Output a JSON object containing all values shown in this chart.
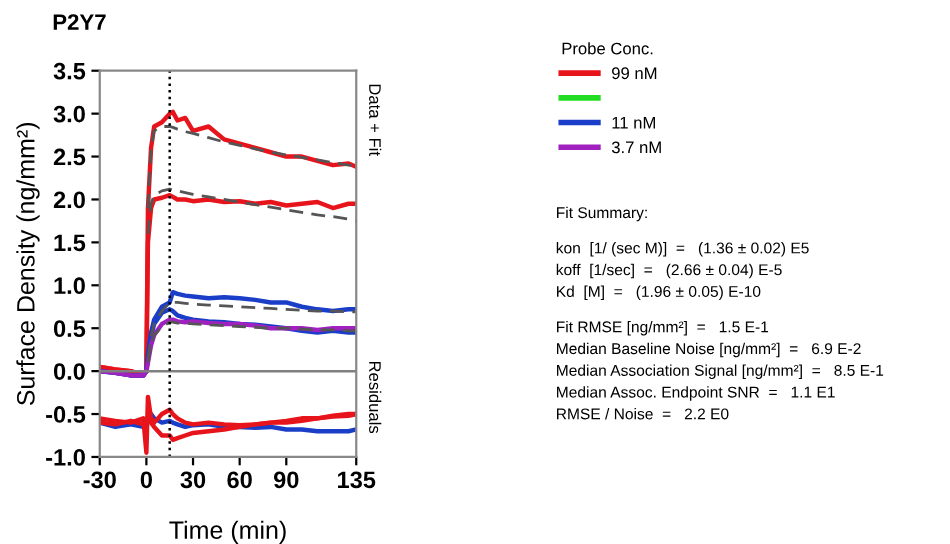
{
  "chart_data": {
    "type": "line",
    "title": "P2Y7",
    "xlabel": "Time (min)",
    "ylabel": "Surface Density (ng/mm²)",
    "legend_title": "Probe Conc.",
    "legend": "right",
    "grid": false,
    "xlim": [
      -30,
      135
    ],
    "xticks": [
      -30,
      0,
      30,
      60,
      90,
      135
    ],
    "ylim": [
      -1.0,
      3.5
    ],
    "yticks": [
      {
        "value": -1.0,
        "label": "-1.0"
      },
      {
        "value": -0.5,
        "label": "-0.5"
      },
      {
        "value": 0.0,
        "label": "0.0"
      },
      {
        "value": 0.5,
        "label": "0.5"
      },
      {
        "value": 1.0,
        "label": "1.0"
      },
      {
        "value": 1.5,
        "label": "1.5"
      },
      {
        "value": 2.0,
        "label": "2.0"
      },
      {
        "value": 2.5,
        "label": "2.5"
      },
      {
        "value": 3.0,
        "label": "3.0"
      },
      {
        "value": 3.5,
        "label": "3.5"
      }
    ],
    "ref_lines": [
      {
        "axis": "y",
        "value": 0,
        "color": "#808080",
        "line_style": "solid"
      },
      {
        "axis": "x",
        "value": 15,
        "color": "#000000",
        "line_style": "dotted"
      }
    ],
    "x": [
      -30,
      -20,
      -10,
      -2,
      0,
      1,
      3,
      5,
      10,
      15,
      17,
      20,
      25,
      30,
      40,
      50,
      60,
      70,
      80,
      90,
      100,
      110,
      120,
      130,
      135
    ],
    "series": [
      {
        "name": "99 nM",
        "color": "#e8141b",
        "values": [
          0.05,
          0.02,
          0.0,
          -0.05,
          0.0,
          1.9,
          2.6,
          2.85,
          2.9,
          3.0,
          3.02,
          2.92,
          2.95,
          2.8,
          2.85,
          2.7,
          2.65,
          2.6,
          2.55,
          2.5,
          2.5,
          2.45,
          2.4,
          2.42,
          2.38
        ]
      },
      {
        "color": "#e8141b",
        "values": [
          0.05,
          0.02,
          0.0,
          -0.05,
          0.0,
          1.5,
          1.9,
          2.0,
          2.02,
          2.05,
          2.03,
          2.0,
          2.0,
          1.98,
          2.0,
          1.97,
          1.98,
          1.95,
          1.97,
          1.93,
          1.95,
          1.97,
          1.9,
          1.95,
          1.95
        ]
      },
      {
        "color": "#22dd22",
        "values": [
          null,
          null,
          null,
          null,
          null,
          null,
          null,
          null,
          null,
          null,
          null,
          null,
          null,
          null,
          null,
          null,
          null,
          null,
          null,
          null,
          null,
          null,
          null,
          null,
          null
        ]
      },
      {
        "name": "11 nM",
        "color": "#1a3ec8",
        "values": [
          0.0,
          -0.02,
          -0.05,
          -0.05,
          0.0,
          0.2,
          0.45,
          0.6,
          0.75,
          0.8,
          0.92,
          0.9,
          0.88,
          0.87,
          0.85,
          0.86,
          0.85,
          0.83,
          0.8,
          0.8,
          0.75,
          0.72,
          0.7,
          0.72,
          0.72
        ]
      },
      {
        "color": "#1a3ec8",
        "values": [
          0.0,
          -0.02,
          -0.05,
          -0.05,
          0.0,
          0.15,
          0.4,
          0.55,
          0.68,
          0.72,
          0.7,
          0.65,
          0.62,
          0.6,
          0.58,
          0.57,
          0.55,
          0.54,
          0.52,
          0.5,
          0.47,
          0.45,
          0.47,
          0.45,
          0.45
        ]
      },
      {
        "name": "3.7 nM",
        "color": "#a020c0",
        "values": [
          0.0,
          -0.02,
          -0.05,
          -0.05,
          0.0,
          0.1,
          0.3,
          0.42,
          0.55,
          0.6,
          0.6,
          0.58,
          0.57,
          0.58,
          0.56,
          0.55,
          0.55,
          0.53,
          0.5,
          0.5,
          0.5,
          0.48,
          0.5,
          0.5,
          0.5
        ]
      },
      {
        "color": "#555555",
        "line_style": "dashed",
        "values": [
          null,
          null,
          null,
          null,
          null,
          1.9,
          2.6,
          2.8,
          2.85,
          2.85,
          2.84,
          2.82,
          2.79,
          2.77,
          2.72,
          2.67,
          2.63,
          2.59,
          2.55,
          2.52,
          2.49,
          2.46,
          2.43,
          2.4,
          2.39
        ]
      },
      {
        "color": "#555555",
        "line_style": "dashed",
        "values": [
          null,
          null,
          null,
          null,
          null,
          1.6,
          1.95,
          2.05,
          2.1,
          2.12,
          2.11,
          2.1,
          2.08,
          2.06,
          2.03,
          2.0,
          1.97,
          1.94,
          1.91,
          1.88,
          1.85,
          1.82,
          1.8,
          1.77,
          1.75
        ]
      },
      {
        "color": "#555555",
        "line_style": "dashed",
        "values": [
          null,
          null,
          null,
          null,
          null,
          0.15,
          0.4,
          0.55,
          0.7,
          0.8,
          0.8,
          0.8,
          0.79,
          0.78,
          0.77,
          0.76,
          0.75,
          0.74,
          0.73,
          0.72,
          0.71,
          0.7,
          0.7,
          0.69,
          0.69
        ]
      },
      {
        "color": "#555555",
        "line_style": "dashed",
        "values": [
          null,
          null,
          null,
          null,
          null,
          0.1,
          0.3,
          0.42,
          0.52,
          0.57,
          0.57,
          0.56,
          0.56,
          0.55,
          0.54,
          0.53,
          0.52,
          0.51,
          0.5,
          0.5,
          0.49,
          0.48,
          0.48,
          0.47,
          0.47
        ]
      },
      {
        "color": "#1a3ec8",
        "values": [
          -0.6,
          -0.65,
          -0.62,
          -0.65,
          -0.55,
          -0.6,
          -0.5,
          -0.55,
          -0.6,
          -0.58,
          -0.6,
          -0.62,
          -0.65,
          -0.63,
          -0.62,
          -0.65,
          -0.65,
          -0.66,
          -0.65,
          -0.68,
          -0.68,
          -0.7,
          -0.7,
          -0.7,
          -0.68
        ]
      },
      {
        "color": "#e8141b",
        "values": [
          -0.55,
          -0.58,
          -0.6,
          -0.55,
          -0.95,
          -0.3,
          -0.55,
          -0.6,
          -0.5,
          -0.45,
          -0.5,
          -0.55,
          -0.6,
          -0.62,
          -0.6,
          -0.62,
          -0.63,
          -0.62,
          -0.6,
          -0.58,
          -0.55,
          -0.55,
          -0.52,
          -0.5,
          -0.5
        ]
      },
      {
        "color": "#e8141b",
        "values": [
          -0.6,
          -0.62,
          -0.58,
          -0.62,
          -0.6,
          -0.55,
          -0.6,
          -0.65,
          -0.75,
          -0.75,
          -0.8,
          -0.78,
          -0.75,
          -0.72,
          -0.7,
          -0.68,
          -0.65,
          -0.62,
          -0.6,
          -0.6,
          -0.58,
          -0.55,
          -0.53,
          -0.52,
          -0.5
        ]
      }
    ],
    "annotations": [
      "Data + Fit",
      "Residuals",
      "Fit Summary:",
      "kon  [1/ (sec M)]  =   (1.36 ± 0.02) E5",
      "koff  [1/sec]  =   (2.66 ± 0.04) E-5",
      "Kd  [M]  =   (1.96 ± 0.05) E-10",
      "Fit RMSE [ng/mm²]  =   1.5 E-1",
      "Median Baseline Noise [ng/mm²]  =   6.9 E-2",
      "Median Association Signal [ng/mm²]  =   8.5 E-1",
      "Median Assoc. Endpoint SNR  =   1.1 E1",
      "RMSE / Noise  =   2.2 E0"
    ]
  }
}
